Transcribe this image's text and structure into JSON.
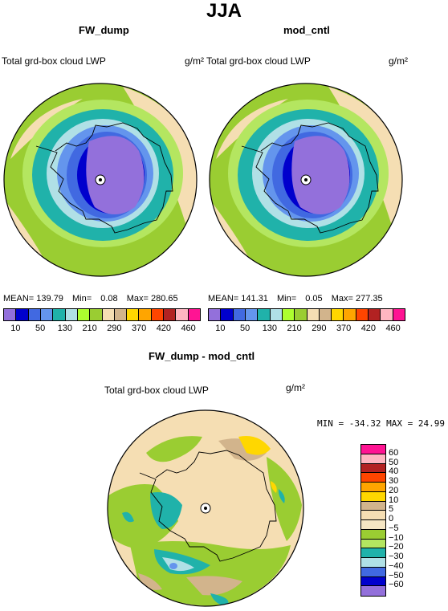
{
  "figure": {
    "title": "JJA"
  },
  "panels": [
    {
      "title": "FW_dump",
      "variable": "Total grd-box cloud LWP",
      "units": "g/m²",
      "stats": {
        "mean_label": "MEAN=",
        "mean": "139.79",
        "min_label": "Min=",
        "min": "0.08",
        "max_label": "Max=",
        "max": "280.65"
      }
    },
    {
      "title": "mod_cntl",
      "variable": "Total grd-box cloud LWP",
      "units": "g/m²",
      "stats": {
        "mean_label": "MEAN=",
        "mean": "141.31",
        "min_label": "Min=",
        "min": "0.05",
        "max_label": "Max=",
        "max": "277.35"
      }
    },
    {
      "title": "FW_dump - mod_cntl",
      "variable": "Total grd-box cloud LWP",
      "units": "g/m²",
      "stats": {
        "text": "MIN = -34.32 MAX =  24.99"
      }
    }
  ],
  "colorbar_abs": {
    "labels": [
      "10",
      "50",
      "130",
      "210",
      "290",
      "370",
      "420",
      "460"
    ],
    "colors": [
      "#9370db",
      "#0000cd",
      "#4169e1",
      "#6495ed",
      "#20b2aa",
      "#b0e0e6",
      "#adff2f",
      "#9acd32",
      "#f5deb3",
      "#d2b48c",
      "#ffd700",
      "#ffa500",
      "#ff4500",
      "#b22222",
      "#ffb6c1",
      "#ff1493"
    ]
  },
  "colorbar_diff": {
    "labels": [
      "60",
      "50",
      "40",
      "30",
      "20",
      "10",
      "5",
      "0",
      "−5",
      "−10",
      "−20",
      "−30",
      "−40",
      "−50",
      "−60"
    ],
    "colors": [
      "#ff1493",
      "#ffb6c1",
      "#b22222",
      "#ff4500",
      "#ffa500",
      "#ffd700",
      "#d2b48c",
      "#f5deb3",
      "#f5e6c4",
      "#9acd32",
      "#b4e660",
      "#20b2aa",
      "#b0e0e6",
      "#4169e1",
      "#0000cd",
      "#9370db"
    ]
  }
}
